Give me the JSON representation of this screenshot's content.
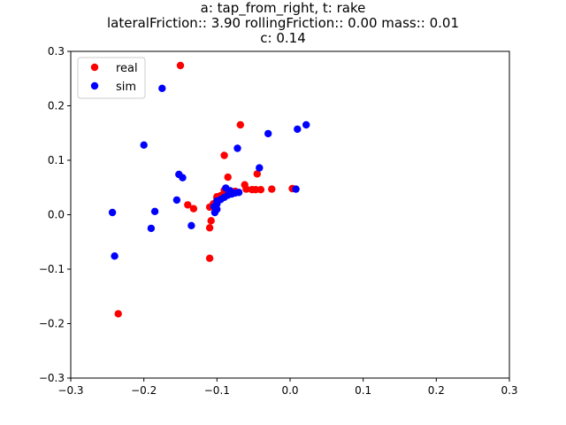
{
  "chart_data": {
    "type": "scatter",
    "title_lines": [
      "a: tap_from_right, t: rake",
      "lateralFriction:: 3.90 rollingFriction:: 0.00 mass:: 0.01",
      "c: 0.14"
    ],
    "xlim": [
      -0.3,
      0.3
    ],
    "ylim": [
      -0.3,
      0.3
    ],
    "x_ticks": [
      -0.3,
      -0.2,
      -0.1,
      0.0,
      0.1,
      0.2,
      0.3
    ],
    "y_ticks": [
      -0.3,
      -0.2,
      -0.1,
      0.0,
      0.1,
      0.2,
      0.3
    ],
    "x_tick_labels": [
      "−0.3",
      "−0.2",
      "−0.1",
      "0.0",
      "0.1",
      "0.2",
      "0.3"
    ],
    "y_tick_labels": [
      "−0.3",
      "−0.2",
      "−0.1",
      "0.0",
      "0.1",
      "0.2",
      "0.3"
    ],
    "grid": false,
    "legend_position": "upper-left",
    "series": [
      {
        "name": "real",
        "color": "#ff0000",
        "points": [
          [
            -0.15,
            0.274
          ],
          [
            -0.068,
            0.165
          ],
          [
            -0.09,
            0.109
          ],
          [
            -0.085,
            0.069
          ],
          [
            -0.045,
            0.075
          ],
          [
            0.003,
            0.048
          ],
          [
            -0.025,
            0.047
          ],
          [
            -0.04,
            0.046
          ],
          [
            -0.047,
            0.046
          ],
          [
            -0.052,
            0.046
          ],
          [
            -0.062,
            0.055
          ],
          [
            -0.06,
            0.047
          ],
          [
            -0.075,
            0.043
          ],
          [
            -0.08,
            0.04
          ],
          [
            -0.09,
            0.045
          ],
          [
            -0.095,
            0.035
          ],
          [
            -0.1,
            0.033
          ],
          [
            -0.1,
            0.03
          ],
          [
            -0.105,
            0.02
          ],
          [
            -0.11,
            0.014
          ],
          [
            -0.14,
            0.018
          ],
          [
            -0.132,
            0.011
          ],
          [
            -0.108,
            -0.011
          ],
          [
            -0.11,
            -0.024
          ],
          [
            -0.11,
            -0.08
          ],
          [
            -0.235,
            -0.182
          ]
        ]
      },
      {
        "name": "sim",
        "color": "#0000ff",
        "points": [
          [
            -0.175,
            0.232
          ],
          [
            0.022,
            0.165
          ],
          [
            0.01,
            0.157
          ],
          [
            -0.03,
            0.149
          ],
          [
            -0.2,
            0.128
          ],
          [
            -0.072,
            0.122
          ],
          [
            -0.042,
            0.086
          ],
          [
            -0.152,
            0.074
          ],
          [
            -0.147,
            0.068
          ],
          [
            0.008,
            0.047
          ],
          [
            -0.07,
            0.041
          ],
          [
            -0.075,
            0.04
          ],
          [
            -0.08,
            0.038
          ],
          [
            -0.085,
            0.036
          ],
          [
            -0.088,
            0.049
          ],
          [
            -0.082,
            0.044
          ],
          [
            -0.09,
            0.032
          ],
          [
            -0.095,
            0.028
          ],
          [
            -0.1,
            0.025
          ],
          [
            -0.1,
            0.02
          ],
          [
            -0.104,
            0.015
          ],
          [
            -0.1,
            0.01
          ],
          [
            -0.103,
            0.004
          ],
          [
            -0.155,
            0.027
          ],
          [
            -0.185,
            0.006
          ],
          [
            -0.243,
            0.004
          ],
          [
            -0.135,
            -0.02
          ],
          [
            -0.19,
            -0.025
          ],
          [
            -0.24,
            -0.076
          ]
        ]
      }
    ]
  }
}
